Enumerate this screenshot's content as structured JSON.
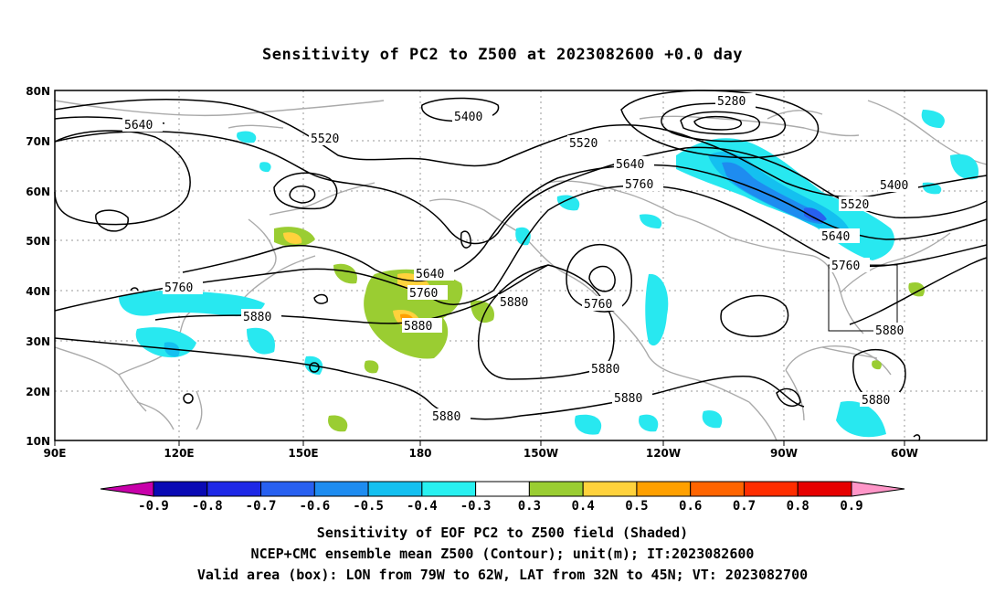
{
  "title": "Sensitivity of PC2 to Z500 at 2023082600 +0.0 day",
  "lat_labels": [
    "80N",
    "70N",
    "60N",
    "50N",
    "40N",
    "30N",
    "20N",
    "10N"
  ],
  "lon_labels": [
    "90E",
    "120E",
    "150E",
    "180",
    "150W",
    "120W",
    "90W",
    "60W"
  ],
  "contour_labels": {
    "c5640_left": "5640",
    "c5520_mid": "5520",
    "c5400_top": "5400",
    "c5280_top": "5280",
    "c5520_n": "5520",
    "c5640_n": "5640",
    "c5760_n": "5760",
    "c5400_e": "5400",
    "c5520_e": "5520",
    "c5640_e": "5640",
    "c5760_e": "5760",
    "c5880_e": "5880",
    "c5640_c": "5640",
    "c5760_c": "5760",
    "c5880_c": "5880",
    "c5880_p": "5880",
    "c5760_h": "5760",
    "c5760_w": "5760",
    "c5880_w": "5880",
    "c5880_s1": "5880",
    "c5880_s2": "5880",
    "c5880_s3": "5880",
    "c5880_gulf": "5880"
  },
  "colorbar": {
    "labels": [
      "-0.9",
      "-0.8",
      "-0.7",
      "-0.6",
      "-0.5",
      "-0.4",
      "-0.3",
      "0.3",
      "0.4",
      "0.5",
      "0.6",
      "0.7",
      "0.8",
      "0.9"
    ],
    "colors": [
      "#0a0ab4",
      "#1e28e6",
      "#2860f0",
      "#1e8cf0",
      "#14c0f0",
      "#28f0f0",
      "#ffffff",
      "#9acd32",
      "#ffd23c",
      "#ffa000",
      "#ff6400",
      "#ff2d00",
      "#e60000"
    ],
    "low_end_color": "#c800aa",
    "high_end_color": "#ff96c8"
  },
  "captions": {
    "line1": "Sensitivity of EOF PC2 to Z500 field (Shaded)",
    "line2": "NCEP+CMC ensemble mean Z500 (Contour); unit(m); IT:2023082600",
    "line3": "Valid area (box): LON from 79W to 62W, LAT from 32N to 45N; VT: 2023082700"
  }
}
